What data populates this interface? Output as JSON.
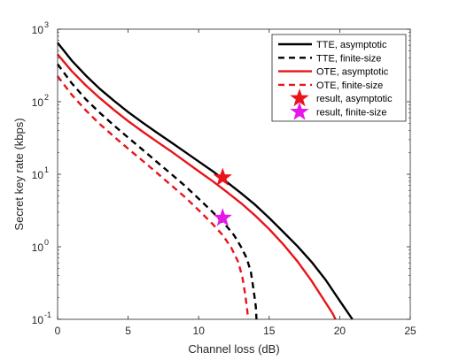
{
  "chart_data": {
    "type": "line",
    "xlabel": "Channel loss (dB)",
    "ylabel": "Secret key rate (kbps)",
    "xlim": [
      0,
      25
    ],
    "ylim": [
      0.1,
      1000
    ],
    "yscale": "log",
    "grid": false,
    "legend_position": "top-right",
    "x_ticks": [
      0,
      5,
      10,
      15,
      20,
      25
    ],
    "x_tick_labels": [
      "0",
      "5",
      "10",
      "15",
      "20",
      "25"
    ],
    "y_ticks": [
      0.1,
      1,
      10,
      100,
      1000
    ],
    "y_tick_labels": [
      {
        "base": "10",
        "exp": "-1"
      },
      {
        "base": "10",
        "exp": "0"
      },
      {
        "base": "10",
        "exp": "1"
      },
      {
        "base": "10",
        "exp": "2"
      },
      {
        "base": "10",
        "exp": "3"
      }
    ],
    "series": [
      {
        "name": "TTE, asymptotic",
        "color": "#000000",
        "dash": "solid",
        "points": [
          [
            0,
            650
          ],
          [
            1,
            370
          ],
          [
            2,
            230
          ],
          [
            3,
            150
          ],
          [
            4,
            103
          ],
          [
            5,
            72
          ],
          [
            6,
            52
          ],
          [
            7,
            38
          ],
          [
            8,
            28
          ],
          [
            9,
            20.5
          ],
          [
            10,
            15
          ],
          [
            11,
            11
          ],
          [
            12,
            7.8
          ],
          [
            13,
            5.5
          ],
          [
            14,
            3.8
          ],
          [
            15,
            2.5
          ],
          [
            16,
            1.6
          ],
          [
            17,
            1.02
          ],
          [
            18,
            0.62
          ],
          [
            19,
            0.35
          ],
          [
            20,
            0.18
          ],
          [
            20.5,
            0.13
          ],
          [
            20.9,
            0.1
          ]
        ]
      },
      {
        "name": "TTE, finite-size",
        "color": "#000000",
        "dash": "dashed",
        "points": [
          [
            0,
            330
          ],
          [
            1,
            180
          ],
          [
            2,
            108
          ],
          [
            3,
            70
          ],
          [
            4,
            47
          ],
          [
            5,
            32
          ],
          [
            6,
            22
          ],
          [
            7,
            15
          ],
          [
            8,
            10.3
          ],
          [
            9,
            7
          ],
          [
            10,
            4.6
          ],
          [
            11,
            3
          ],
          [
            12,
            1.9
          ],
          [
            12.5,
            1.45
          ],
          [
            13,
            1.0
          ],
          [
            13.4,
            0.7
          ],
          [
            13.7,
            0.45
          ],
          [
            13.9,
            0.25
          ],
          [
            14.05,
            0.15
          ],
          [
            14.1,
            0.1
          ]
        ]
      },
      {
        "name": "OTE, asymptotic",
        "color": "#e8141a",
        "dash": "solid",
        "points": [
          [
            0,
            450
          ],
          [
            1,
            265
          ],
          [
            2,
            168
          ],
          [
            3,
            112
          ],
          [
            4,
            77
          ],
          [
            5,
            54
          ],
          [
            6,
            39
          ],
          [
            7,
            28.5
          ],
          [
            8,
            21
          ],
          [
            9,
            15.2
          ],
          [
            10,
            11
          ],
          [
            11,
            8
          ],
          [
            12,
            5.7
          ],
          [
            13,
            4
          ],
          [
            14,
            2.7
          ],
          [
            15,
            1.75
          ],
          [
            16,
            1.08
          ],
          [
            17,
            0.63
          ],
          [
            18,
            0.34
          ],
          [
            19,
            0.17
          ],
          [
            19.5,
            0.12
          ],
          [
            19.7,
            0.1
          ]
        ]
      },
      {
        "name": "OTE, finite-size",
        "color": "#e8141a",
        "dash": "dashed",
        "points": [
          [
            0,
            225
          ],
          [
            1,
            125
          ],
          [
            2,
            76
          ],
          [
            3,
            49
          ],
          [
            4,
            33
          ],
          [
            5,
            22.5
          ],
          [
            6,
            15.5
          ],
          [
            7,
            10.6
          ],
          [
            8,
            7.2
          ],
          [
            9,
            4.9
          ],
          [
            10,
            3.2
          ],
          [
            11,
            2.05
          ],
          [
            11.7,
            1.45
          ],
          [
            12.3,
            0.98
          ],
          [
            12.8,
            0.62
          ],
          [
            13.1,
            0.38
          ],
          [
            13.3,
            0.22
          ],
          [
            13.45,
            0.13
          ],
          [
            13.5,
            0.1
          ]
        ]
      },
      {
        "name": "result, asymptotic",
        "color": "#e8141a",
        "marker": "star",
        "points": [
          [
            11.7,
            9.0
          ]
        ]
      },
      {
        "name": "result, finite-size",
        "color": "#e617e6",
        "marker": "star",
        "points": [
          [
            11.7,
            2.5
          ]
        ]
      }
    ]
  }
}
